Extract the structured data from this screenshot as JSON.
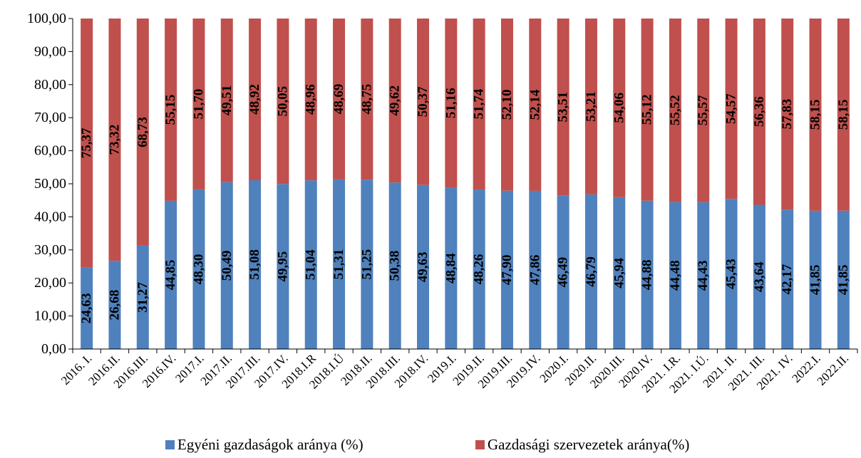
{
  "chart_data": {
    "type": "bar",
    "stacked": true,
    "categories": [
      "2016. I.",
      "2016.II.",
      "2016.III.",
      "2016.IV.",
      "2017.I.",
      "2017.II.",
      "2017.III.",
      "2017.IV.",
      "2018.I.R",
      "2018.I.Ú",
      "2018.II.",
      "2018.III.",
      "2018.IV.",
      "2019.I.",
      "2019.II.",
      "2019.III.",
      "2019.IV.",
      "2020.I.",
      "2020.II.",
      "2020.III.",
      "2020.IV.",
      "2021. I.R.",
      "2021. I.Ú.",
      "2021. II.",
      "2021. III.",
      "2021. IV.",
      "2022.I.",
      "2022.II."
    ],
    "series": [
      {
        "name": "Egyéni gazdaságok aránya (%)",
        "color": "#4F81BD",
        "values": [
          24.63,
          26.68,
          31.27,
          44.85,
          48.3,
          50.49,
          51.08,
          49.95,
          51.04,
          51.31,
          51.25,
          50.38,
          49.63,
          48.84,
          48.26,
          47.9,
          47.86,
          46.49,
          46.79,
          45.94,
          44.88,
          44.48,
          44.43,
          45.43,
          43.64,
          42.17,
          41.85,
          41.85
        ],
        "labels": [
          "24,63",
          "26,68",
          "31,27",
          "44,85",
          "48,30",
          "50,49",
          "51,08",
          "49,95",
          "51,04",
          "51,31",
          "51,25",
          "50,38",
          "49,63",
          "48,84",
          "48,26",
          "47,90",
          "47,86",
          "46,49",
          "46,79",
          "45,94",
          "44,88",
          "44,48",
          "44,43",
          "45,43",
          "43,64",
          "42,17",
          "41,85",
          "41,85"
        ]
      },
      {
        "name": "Gazdasági szervezetek aránya(%)",
        "color": "#C0504D",
        "values": [
          75.37,
          73.32,
          68.73,
          55.15,
          51.7,
          49.51,
          48.92,
          50.05,
          48.96,
          48.69,
          48.75,
          49.62,
          50.37,
          51.16,
          51.74,
          52.1,
          52.14,
          53.51,
          53.21,
          54.06,
          55.12,
          55.52,
          55.57,
          54.57,
          56.36,
          57.83,
          58.15,
          58.15
        ],
        "labels": [
          "75,37",
          "73,32",
          "68,73",
          "55,15",
          "51,70",
          "49,51",
          "48,92",
          "50,05",
          "48,96",
          "48,69",
          "48,75",
          "49,62",
          "50,37",
          "51,16",
          "51,74",
          "52,10",
          "52,14",
          "53,51",
          "53,21",
          "54,06",
          "55,12",
          "55,52",
          "55,57",
          "54,57",
          "56,36",
          "57,83",
          "58,15",
          "58,15"
        ]
      }
    ],
    "ylim": [
      0,
      100
    ],
    "yticks": [
      "0,00",
      "10,00",
      "20,00",
      "30,00",
      "40,00",
      "50,00",
      "60,00",
      "70,00",
      "80,00",
      "90,00",
      "100,00"
    ],
    "title": "",
    "xlabel": "",
    "ylabel": "",
    "grid": false,
    "legend_position": "bottom"
  }
}
